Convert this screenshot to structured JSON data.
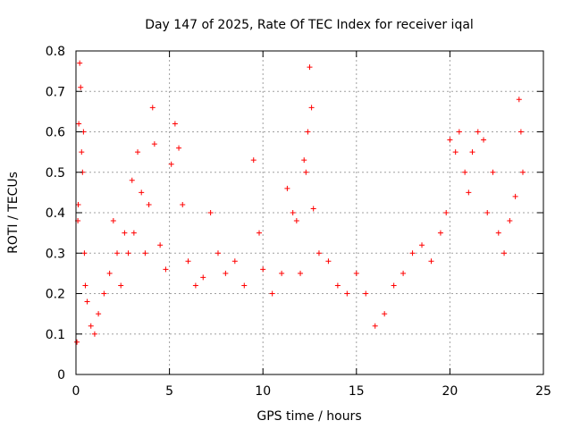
{
  "chart_data": {
    "type": "scatter",
    "title": "Day 147 of 2025, Rate Of TEC Index for receiver iqal",
    "xlabel": "GPS time / hours",
    "ylabel": "ROTI / TECUs",
    "xlim": [
      0,
      25
    ],
    "ylim": [
      0,
      0.8
    ],
    "xticks": [
      0,
      5,
      10,
      15,
      20,
      25
    ],
    "xtick_labels": [
      "0",
      "5",
      "10",
      "15",
      "20",
      "25"
    ],
    "yticks": [
      0,
      0.1,
      0.2,
      0.3,
      0.4,
      0.5,
      0.6,
      0.7,
      0.8
    ],
    "ytick_labels": [
      "0",
      "0.1",
      "0.2",
      "0.3",
      "0.4",
      "0.5",
      "0.6",
      "0.7",
      "0.8"
    ],
    "grid": true,
    "marker": "+",
    "color": "#ff0000",
    "series": [
      {
        "name": "ROTI",
        "x": [
          0.05,
          0.1,
          0.12,
          0.15,
          0.2,
          0.25,
          0.3,
          0.35,
          0.4,
          0.45,
          0.5,
          0.6,
          0.8,
          1.0,
          1.2,
          1.5,
          1.8,
          2.0,
          2.2,
          2.4,
          2.6,
          2.8,
          3.0,
          3.1,
          3.3,
          3.5,
          3.7,
          3.9,
          4.1,
          4.2,
          4.5,
          4.8,
          5.1,
          5.3,
          5.5,
          5.7,
          6.0,
          6.4,
          6.8,
          7.2,
          7.6,
          8.0,
          8.5,
          9.0,
          9.5,
          9.8,
          10.0,
          10.5,
          11.0,
          11.3,
          11.6,
          11.8,
          12.0,
          12.2,
          12.3,
          12.4,
          12.5,
          12.6,
          12.7,
          13.0,
          13.5,
          14.0,
          14.5,
          15.0,
          15.5,
          16.0,
          16.5,
          17.0,
          17.5,
          18.0,
          18.5,
          19.0,
          19.5,
          19.8,
          20.0,
          20.3,
          20.5,
          20.8,
          21.0,
          21.2,
          21.5,
          21.8,
          22.0,
          22.3,
          22.6,
          22.9,
          23.2,
          23.5,
          23.7,
          23.8,
          23.9
        ],
        "y": [
          0.08,
          0.38,
          0.42,
          0.62,
          0.77,
          0.71,
          0.55,
          0.5,
          0.6,
          0.3,
          0.22,
          0.18,
          0.12,
          0.1,
          0.15,
          0.2,
          0.25,
          0.38,
          0.3,
          0.22,
          0.35,
          0.3,
          0.48,
          0.35,
          0.55,
          0.45,
          0.3,
          0.42,
          0.66,
          0.57,
          0.32,
          0.26,
          0.52,
          0.62,
          0.56,
          0.42,
          0.28,
          0.22,
          0.24,
          0.4,
          0.3,
          0.25,
          0.28,
          0.22,
          0.53,
          0.35,
          0.26,
          0.2,
          0.25,
          0.46,
          0.4,
          0.38,
          0.25,
          0.53,
          0.5,
          0.6,
          0.76,
          0.66,
          0.41,
          0.3,
          0.28,
          0.22,
          0.2,
          0.25,
          0.2,
          0.12,
          0.15,
          0.22,
          0.25,
          0.3,
          0.32,
          0.28,
          0.35,
          0.4,
          0.58,
          0.55,
          0.6,
          0.5,
          0.45,
          0.55,
          0.6,
          0.58,
          0.4,
          0.5,
          0.35,
          0.3,
          0.38,
          0.44,
          0.68,
          0.6,
          0.5
        ]
      }
    ]
  }
}
